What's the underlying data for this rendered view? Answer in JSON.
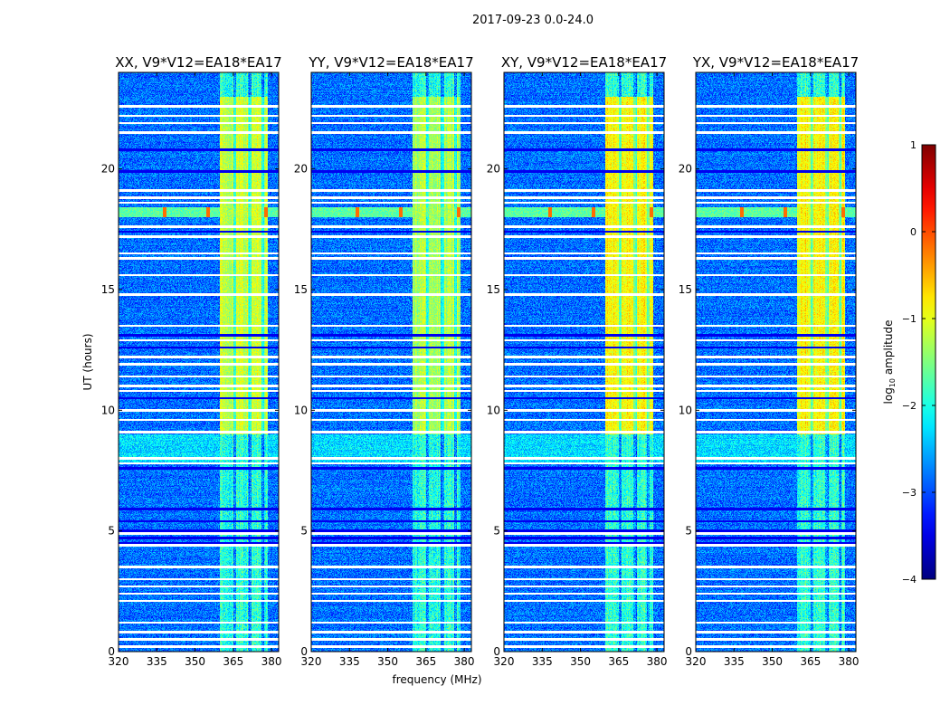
{
  "chart_data": {
    "type": "heatmap",
    "suptitle": "2017-09-23 0.0-24.0",
    "xlabel": "frequency (MHz)",
    "ylabel": "UT (hours)",
    "xlim": [
      320,
      382.8
    ],
    "ylim": [
      0,
      24
    ],
    "xticks": [
      "320",
      "335",
      "350",
      "365",
      "380"
    ],
    "xtick_values": [
      320,
      335,
      350,
      365,
      380
    ],
    "yticks": [
      "0",
      "5",
      "10",
      "15",
      "20"
    ],
    "ytick_values": [
      0,
      5,
      10,
      15,
      20
    ],
    "panels": [
      {
        "title": "XX, V9*V12=EA18*EA17",
        "seed": 11,
        "strong_band": 1.0
      },
      {
        "title": "YY, V9*V12=EA18*EA17",
        "seed": 23,
        "strong_band": 1.1
      },
      {
        "title": "XY, V9*V12=EA18*EA17",
        "seed": 37,
        "strong_band": 0.8
      },
      {
        "title": "YX, V9*V12=EA18*EA17",
        "seed": 51,
        "strong_band": 0.8
      }
    ],
    "background_log_amplitude": -3.3,
    "rfi_band_mhz": [
      359.6,
      378.7
    ],
    "rfi_band_strong_hours": [
      9.0,
      23.0
    ],
    "rfi_band_strong_log_amplitude": -1.4,
    "rfi_band_weak_log_amplitude": -2.3,
    "rfi_band_gaps_mhz": [
      365.5,
      371.5,
      376.5
    ],
    "bright_row_hours": [
      18.0,
      18.4
    ],
    "bright_spike_mhz": [
      338,
      355,
      378
    ],
    "elevated_row_hours": [
      7.8,
      9.0
    ],
    "flagged_hours": [
      22.6,
      22.2,
      21.9,
      21.5,
      19.1,
      18.8,
      18.6,
      17.6,
      17.2,
      16.3,
      16.5,
      15.6,
      14.8,
      13.5,
      12.9,
      12.2,
      11.9,
      11.4,
      11.0,
      10.8,
      10.0,
      9.6,
      9.1,
      8.0,
      7.8,
      4.9,
      4.4,
      3.5,
      3.0,
      2.7,
      2.4,
      2.1,
      1.2,
      0.8,
      0.5,
      0.2
    ],
    "dark_hours": [
      20.8,
      19.9,
      17.4,
      13.1,
      12.6,
      10.5,
      7.6,
      5.9,
      5.4,
      5.0,
      4.7,
      4.5
    ],
    "colorbar": {
      "label_prefix": "log",
      "label_sub": "10",
      "label_suffix": " amplitude",
      "range": [
        -4,
        1
      ],
      "ticks": [
        "−4",
        "−3",
        "−2",
        "−1",
        "0",
        "1"
      ],
      "tick_values": [
        -4,
        -3,
        -2,
        -1,
        0,
        1
      ],
      "colormap": "jet"
    }
  }
}
